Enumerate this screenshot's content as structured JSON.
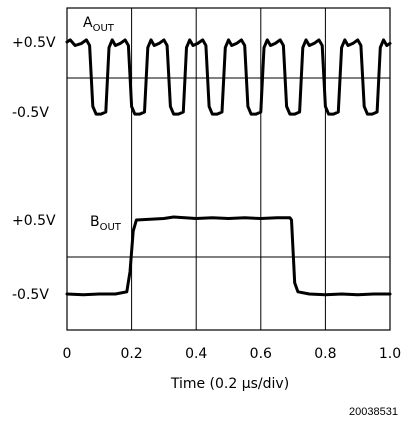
{
  "chart_data": {
    "type": "line",
    "xlabel": "Time (0.2 μs/div)",
    "x_ticks": [
      "0",
      "0.2",
      "0.4",
      "0.6",
      "0.8",
      "1.0"
    ],
    "xlim": [
      0,
      1.0
    ],
    "grid": true,
    "figure_id": "20038531",
    "panels": [
      {
        "label_main": "A",
        "label_sub": "OUT",
        "y_ticks": [
          "+0.5V",
          "-0.5V"
        ],
        "ylim": [
          -0.5,
          0.5
        ],
        "series": [
          {
            "x": [
              0,
              0.01,
              0.025,
              0.045,
              0.06,
              0.07,
              0.08,
              0.09,
              0.105,
              0.12,
              0.13,
              0.14,
              0.15,
              0.165,
              0.18,
              0.19,
              0.2,
              0.21,
              0.225,
              0.24,
              0.25,
              0.26,
              0.27,
              0.285,
              0.3,
              0.31,
              0.32,
              0.33,
              0.345,
              0.36,
              0.37,
              0.38,
              0.39,
              0.405,
              0.42,
              0.43,
              0.44,
              0.45,
              0.465,
              0.48,
              0.49,
              0.5,
              0.51,
              0.525,
              0.54,
              0.55,
              0.56,
              0.57,
              0.585,
              0.6,
              0.61,
              0.62,
              0.63,
              0.645,
              0.66,
              0.67,
              0.68,
              0.69,
              0.705,
              0.72,
              0.73,
              0.74,
              0.75,
              0.765,
              0.78,
              0.79,
              0.8,
              0.81,
              0.825,
              0.84,
              0.85,
              0.86,
              0.87,
              0.885,
              0.9,
              0.91,
              0.92,
              0.93,
              0.945,
              0.96,
              0.97,
              0.98,
              0.99,
              1.0
            ],
            "y": [
              0.5,
              0.53,
              0.45,
              0.48,
              0.53,
              0.45,
              -0.42,
              -0.53,
              -0.53,
              -0.5,
              0.42,
              0.53,
              0.45,
              0.48,
              0.53,
              0.45,
              -0.42,
              -0.53,
              -0.53,
              -0.5,
              0.42,
              0.53,
              0.45,
              0.48,
              0.53,
              0.45,
              -0.42,
              -0.53,
              -0.53,
              -0.5,
              0.42,
              0.53,
              0.45,
              0.48,
              0.53,
              0.45,
              -0.42,
              -0.53,
              -0.53,
              -0.5,
              0.42,
              0.53,
              0.45,
              0.48,
              0.53,
              0.45,
              -0.42,
              -0.53,
              -0.53,
              -0.5,
              0.42,
              0.53,
              0.45,
              0.48,
              0.53,
              0.45,
              -0.42,
              -0.53,
              -0.53,
              -0.5,
              0.42,
              0.53,
              0.45,
              0.48,
              0.53,
              0.45,
              -0.42,
              -0.53,
              -0.53,
              -0.5,
              0.42,
              0.53,
              0.45,
              0.48,
              0.53,
              0.45,
              -0.42,
              -0.53,
              -0.53,
              -0.5,
              0.42,
              0.53,
              0.45,
              0.48
            ]
          }
        ]
      },
      {
        "label_main": "B",
        "label_sub": "OUT",
        "y_ticks": [
          "+0.5V",
          "-0.5V"
        ],
        "ylim": [
          -0.5,
          0.5
        ],
        "series": [
          {
            "x": [
              0,
              0.05,
              0.1,
              0.15,
              0.185,
              0.195,
              0.205,
              0.215,
              0.3,
              0.33,
              0.4,
              0.45,
              0.5,
              0.55,
              0.6,
              0.65,
              0.69,
              0.695,
              0.705,
              0.715,
              0.75,
              0.8,
              0.85,
              0.9,
              0.95,
              1.0
            ],
            "y": [
              -0.5,
              -0.51,
              -0.5,
              -0.5,
              -0.47,
              -0.2,
              0.35,
              0.5,
              0.52,
              0.54,
              0.52,
              0.53,
              0.52,
              0.53,
              0.52,
              0.53,
              0.53,
              0.5,
              -0.35,
              -0.47,
              -0.5,
              -0.51,
              -0.5,
              -0.51,
              -0.5,
              -0.5
            ]
          }
        ]
      }
    ]
  }
}
